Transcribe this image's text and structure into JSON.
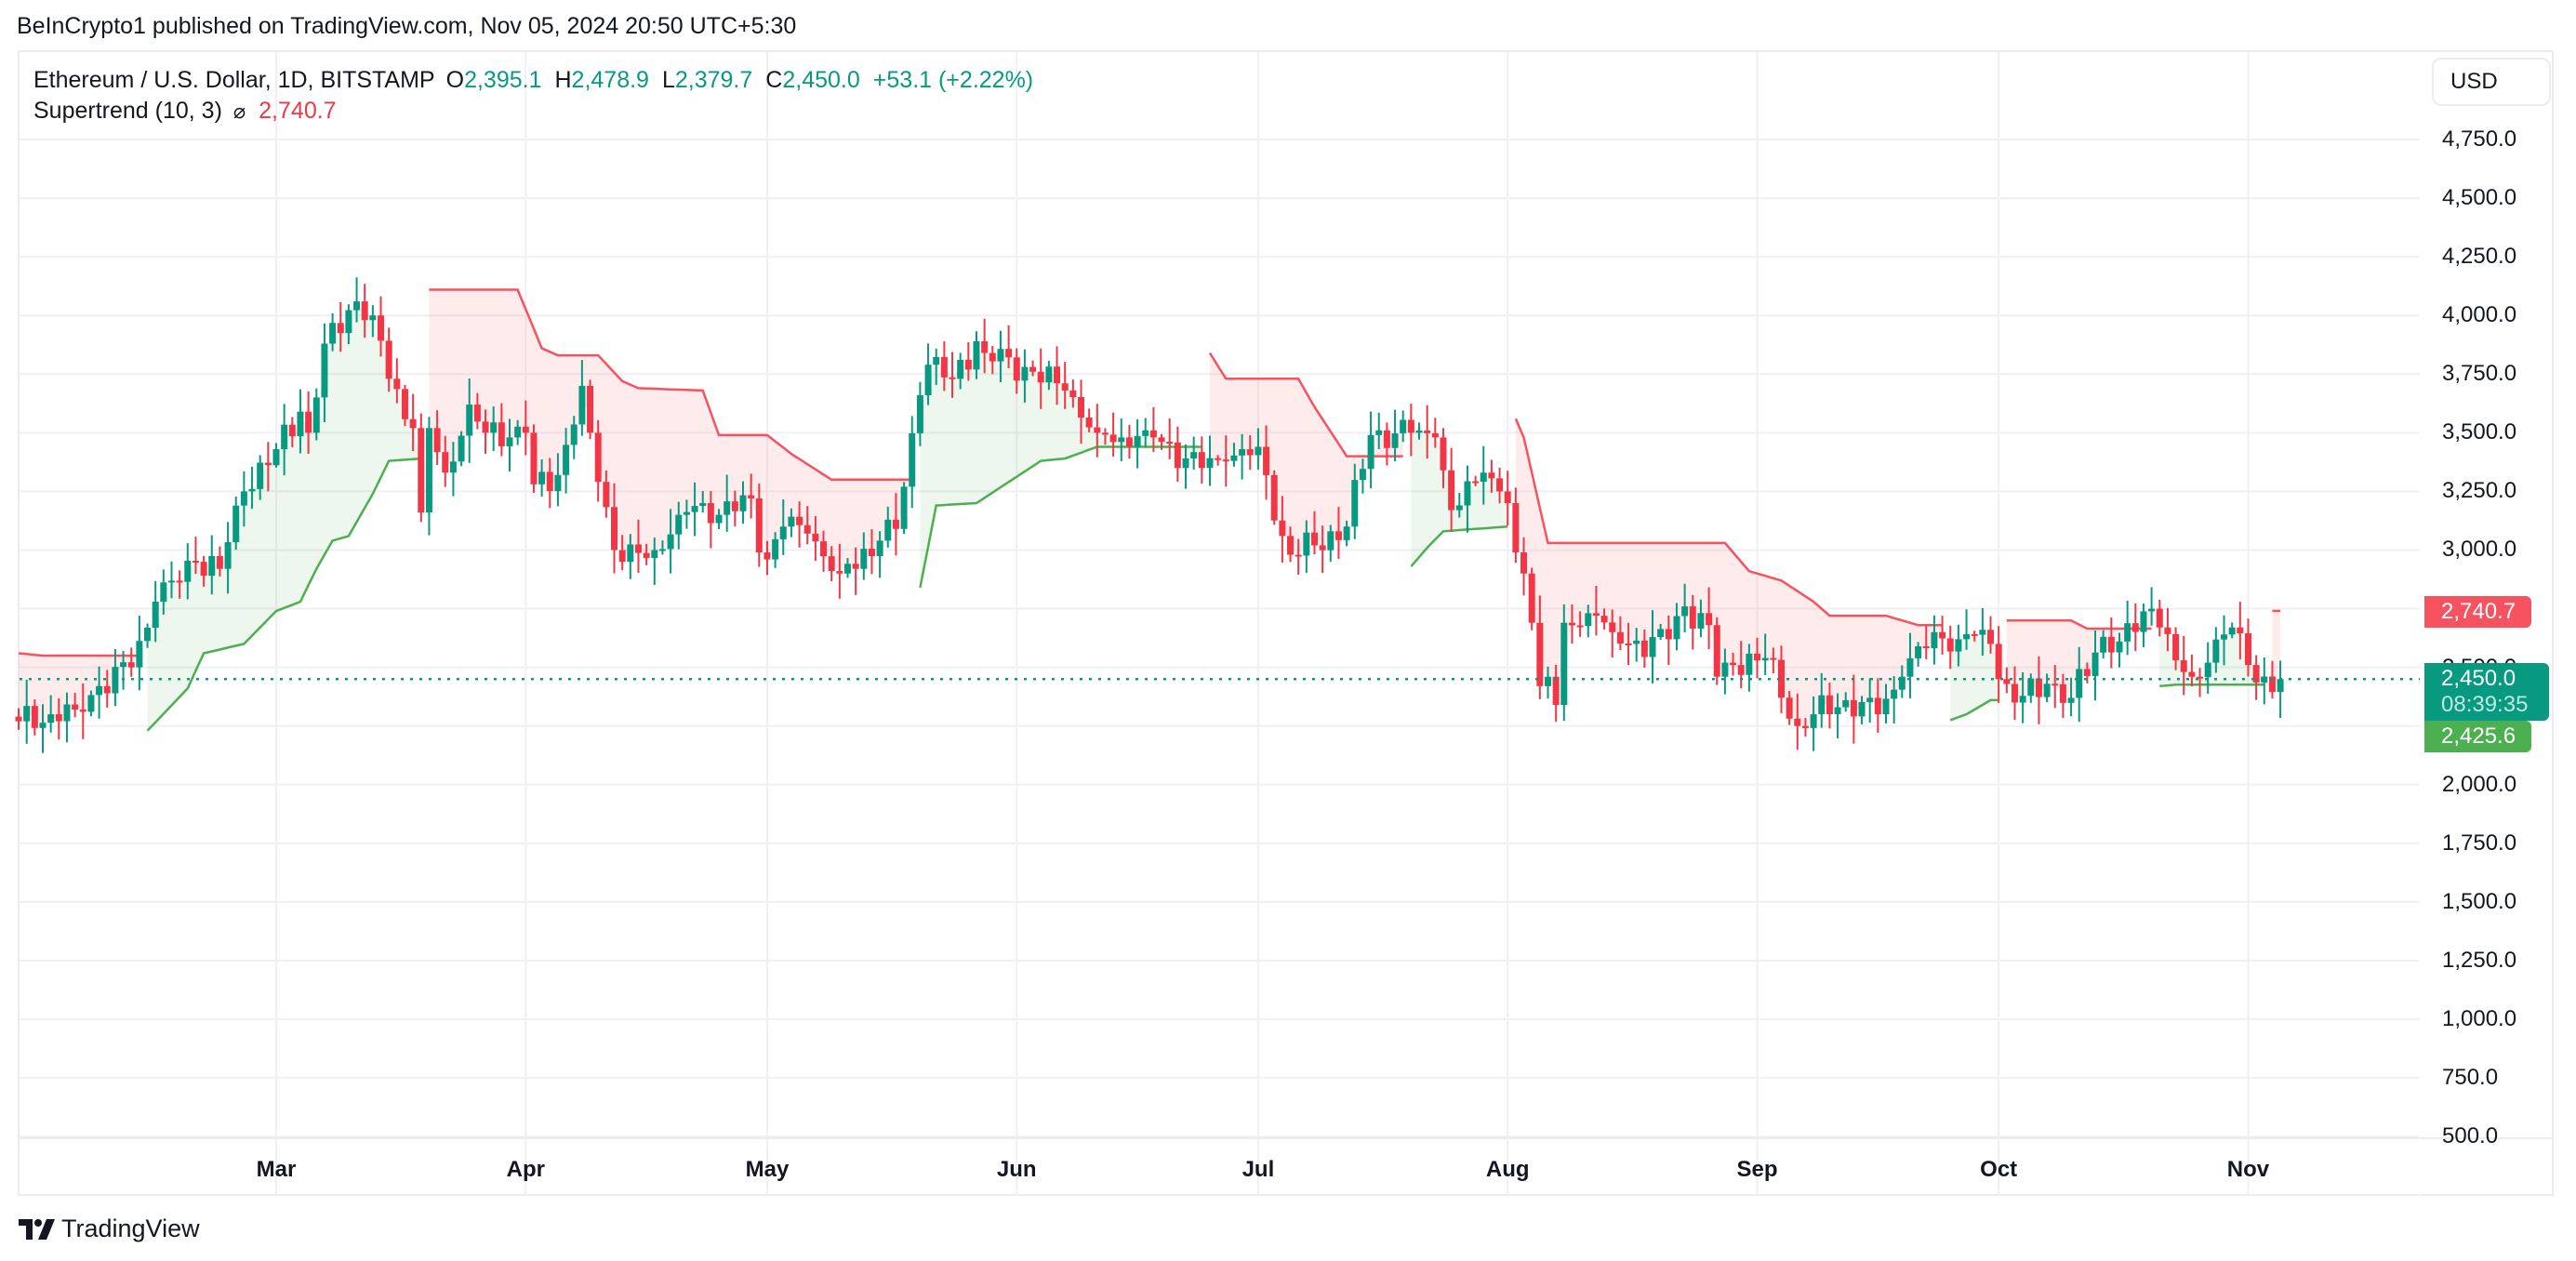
{
  "header": {
    "published": "BeInCrypto1 published on TradingView.com, Nov 05, 2024 20:50 UTC+5:30"
  },
  "legend": {
    "symbol": "Ethereum / U.S. Dollar, 1D, BITSTAMP",
    "o_label": "O",
    "o": "2,395.1",
    "h_label": "H",
    "h": "2,478.9",
    "l_label": "L",
    "l": "2,379.7",
    "c_label": "C",
    "c": "2,450.0",
    "change": "+53.1 (+2.22%)",
    "indicator": "Supertrend (10, 3)",
    "indicator_icon": "⌀",
    "indicator_value": "2,740.7"
  },
  "price_axis": {
    "currency": "USD",
    "ticks": [
      "4,750.0",
      "4,500.0",
      "4,250.0",
      "4,000.0",
      "3,750.0",
      "3,500.0",
      "3,250.0",
      "3,000.0",
      "2,500.0",
      "2,000.0",
      "1,750.0",
      "1,500.0",
      "1,250.0",
      "1,000.0",
      "750.0",
      "500.0"
    ]
  },
  "tags": {
    "supertrend_down": "2,740.7",
    "last_price": "2,450.0",
    "countdown": "08:39:35",
    "supertrend_up": "2,425.6"
  },
  "time_axis": {
    "labels": [
      "Mar",
      "Apr",
      "May",
      "Jun",
      "Jul",
      "Aug",
      "Sep",
      "Oct",
      "Nov"
    ]
  },
  "brand": {
    "name": "TradingView"
  },
  "colors": {
    "up": "#089981",
    "down": "#f23645",
    "st_up": "#4caf50",
    "st_down": "#f7525f",
    "st_up_fill": "rgba(76,175,80,0.10)",
    "st_down_fill": "rgba(247,82,95,0.11)",
    "grid": "#f0f0f3"
  },
  "chart_data": {
    "type": "candlestick",
    "title": "Ethereum / U.S. Dollar, 1D, BITSTAMP",
    "xlabel": "",
    "ylabel": "USD",
    "ylim": [
      500,
      4750
    ],
    "y_ticks": [
      500,
      750,
      1000,
      1250,
      1500,
      1750,
      2000,
      2250,
      2500,
      2750,
      3000,
      3250,
      3500,
      3750,
      4000,
      4250,
      4500,
      4750
    ],
    "x_ticks": [
      "Mar",
      "Apr",
      "May",
      "Jun",
      "Jul",
      "Aug",
      "Sep",
      "Oct",
      "Nov"
    ],
    "start_date": "2024-01-29",
    "end_date": "2024-11-05",
    "last_ohlc": {
      "open": 2395.1,
      "high": 2478.9,
      "low": 2379.7,
      "close": 2450.0,
      "change": 53.1,
      "change_pct": 2.22
    },
    "close_keypoints": [
      [
        "2024-01-29",
        2270
      ],
      [
        "2024-02-02",
        2300
      ],
      [
        "2024-02-05",
        2320
      ],
      [
        "2024-02-08",
        2420
      ],
      [
        "2024-02-12",
        2500
      ],
      [
        "2024-02-15",
        2780
      ],
      [
        "2024-02-20",
        2950
      ],
      [
        "2024-02-23",
        2920
      ],
      [
        "2024-02-26",
        3250
      ],
      [
        "2024-03-01",
        3430
      ],
      [
        "2024-03-04",
        3590
      ],
      [
        "2024-03-05",
        3500
      ],
      [
        "2024-03-07",
        3880
      ],
      [
        "2024-03-11",
        4060
      ],
      [
        "2024-03-12",
        3980
      ],
      [
        "2024-03-13",
        4000
      ],
      [
        "2024-03-15",
        3730
      ],
      [
        "2024-03-18",
        3520
      ],
      [
        "2024-03-19",
        3160
      ],
      [
        "2024-03-20",
        3520
      ],
      [
        "2024-03-22",
        3330
      ],
      [
        "2024-03-25",
        3620
      ],
      [
        "2024-03-27",
        3500
      ],
      [
        "2024-04-01",
        3500
      ],
      [
        "2024-04-02",
        3280
      ],
      [
        "2024-04-05",
        3320
      ],
      [
        "2024-04-08",
        3700
      ],
      [
        "2024-04-09",
        3500
      ],
      [
        "2024-04-12",
        3000
      ],
      [
        "2024-04-13",
        2950
      ],
      [
        "2024-04-17",
        3000
      ],
      [
        "2024-04-20",
        3150
      ],
      [
        "2024-04-23",
        3200
      ],
      [
        "2024-04-25",
        3150
      ],
      [
        "2024-04-29",
        3220
      ],
      [
        "2024-04-30",
        2990
      ],
      [
        "2024-05-01",
        2960
      ],
      [
        "2024-05-03",
        3100
      ],
      [
        "2024-05-06",
        3070
      ],
      [
        "2024-05-10",
        2900
      ],
      [
        "2024-05-15",
        3040
      ],
      [
        "2024-05-17",
        3090
      ],
      [
        "2024-05-20",
        3660
      ],
      [
        "2024-05-21",
        3790
      ],
      [
        "2024-05-24",
        3730
      ],
      [
        "2024-05-27",
        3890
      ],
      [
        "2024-05-28",
        3840
      ],
      [
        "2024-06-03",
        3760
      ],
      [
        "2024-06-07",
        3680
      ],
      [
        "2024-06-11",
        3500
      ],
      [
        "2024-06-14",
        3480
      ],
      [
        "2024-06-17",
        3510
      ],
      [
        "2024-06-18",
        3480
      ],
      [
        "2024-06-24",
        3350
      ],
      [
        "2024-06-27",
        3380
      ],
      [
        "2024-07-01",
        3440
      ],
      [
        "2024-07-04",
        3060
      ],
      [
        "2024-07-05",
        2980
      ],
      [
        "2024-07-08",
        3020
      ],
      [
        "2024-07-12",
        3100
      ],
      [
        "2024-07-15",
        3490
      ],
      [
        "2024-07-20",
        3500
      ],
      [
        "2024-07-23",
        3480
      ],
      [
        "2024-07-24",
        3340
      ],
      [
        "2024-07-25",
        3170
      ],
      [
        "2024-07-29",
        3330
      ],
      [
        "2024-08-01",
        3200
      ],
      [
        "2024-08-02",
        2990
      ],
      [
        "2024-08-03",
        2900
      ],
      [
        "2024-08-04",
        2690
      ],
      [
        "2024-08-05",
        2420
      ],
      [
        "2024-08-06",
        2460
      ],
      [
        "2024-08-07",
        2340
      ],
      [
        "2024-08-08",
        2690
      ],
      [
        "2024-08-12",
        2720
      ],
      [
        "2024-08-14",
        2650
      ],
      [
        "2024-08-16",
        2600
      ],
      [
        "2024-08-21",
        2620
      ],
      [
        "2024-08-23",
        2760
      ],
      [
        "2024-08-26",
        2680
      ],
      [
        "2024-08-27",
        2460
      ],
      [
        "2024-08-28",
        2520
      ],
      [
        "2024-09-02",
        2540
      ],
      [
        "2024-09-06",
        2250
      ],
      [
        "2024-09-08",
        2300
      ],
      [
        "2024-09-12",
        2360
      ],
      [
        "2024-09-16",
        2300
      ],
      [
        "2024-09-19",
        2460
      ],
      [
        "2024-09-23",
        2650
      ],
      [
        "2024-09-26",
        2620
      ],
      [
        "2024-09-29",
        2660
      ],
      [
        "2024-09-30",
        2600
      ],
      [
        "2024-10-01",
        2450
      ],
      [
        "2024-10-03",
        2350
      ],
      [
        "2024-10-07",
        2430
      ],
      [
        "2024-10-10",
        2370
      ],
      [
        "2024-10-14",
        2630
      ],
      [
        "2024-10-16",
        2610
      ],
      [
        "2024-10-20",
        2750
      ],
      [
        "2024-10-21",
        2670
      ],
      [
        "2024-10-23",
        2530
      ],
      [
        "2024-10-25",
        2460
      ],
      [
        "2024-10-27",
        2520
      ],
      [
        "2024-10-29",
        2640
      ],
      [
        "2024-10-30",
        2670
      ],
      [
        "2024-11-01",
        2510
      ],
      [
        "2024-11-04",
        2395
      ],
      [
        "2024-11-05",
        2450
      ]
    ],
    "supertrend": {
      "name": "Supertrend (10, 3)",
      "segments": [
        {
          "dir": "down",
          "points": [
            [
              "2024-01-29",
              2560
            ],
            [
              "2024-02-01",
              2550
            ],
            [
              "2024-02-13",
              2550
            ]
          ]
        },
        {
          "dir": "up",
          "points": [
            [
              "2024-02-14",
              2230
            ],
            [
              "2024-02-19",
              2410
            ],
            [
              "2024-02-21",
              2560
            ],
            [
              "2024-02-26",
              2600
            ],
            [
              "2024-03-01",
              2740
            ],
            [
              "2024-03-04",
              2780
            ],
            [
              "2024-03-06",
              2920
            ],
            [
              "2024-03-08",
              3040
            ],
            [
              "2024-03-10",
              3060
            ],
            [
              "2024-03-13",
              3240
            ],
            [
              "2024-03-15",
              3380
            ],
            [
              "2024-03-19",
              3390
            ]
          ]
        },
        {
          "dir": "down",
          "points": [
            [
              "2024-03-20",
              4110
            ],
            [
              "2024-03-31",
              4110
            ],
            [
              "2024-04-03",
              3860
            ],
            [
              "2024-04-05",
              3830
            ],
            [
              "2024-04-10",
              3830
            ],
            [
              "2024-04-13",
              3720
            ],
            [
              "2024-04-15",
              3690
            ],
            [
              "2024-04-23",
              3680
            ],
            [
              "2024-04-25",
              3490
            ],
            [
              "2024-05-01",
              3490
            ],
            [
              "2024-05-04",
              3410
            ],
            [
              "2024-05-09",
              3300
            ],
            [
              "2024-05-19",
              3300
            ]
          ]
        },
        {
          "dir": "up",
          "points": [
            [
              "2024-05-20",
              2840
            ],
            [
              "2024-05-22",
              3190
            ],
            [
              "2024-05-27",
              3200
            ],
            [
              "2024-06-04",
              3380
            ],
            [
              "2024-06-07",
              3390
            ],
            [
              "2024-06-11",
              3440
            ],
            [
              "2024-06-24",
              3440
            ]
          ]
        },
        {
          "dir": "down",
          "points": [
            [
              "2024-06-25",
              3840
            ],
            [
              "2024-06-27",
              3730
            ],
            [
              "2024-07-06",
              3730
            ],
            [
              "2024-07-08",
              3610
            ],
            [
              "2024-07-12",
              3400
            ],
            [
              "2024-07-19",
              3400
            ]
          ]
        },
        {
          "dir": "up",
          "points": [
            [
              "2024-07-20",
              2930
            ],
            [
              "2024-07-22",
              3010
            ],
            [
              "2024-07-24",
              3080
            ],
            [
              "2024-08-01",
              3100
            ]
          ]
        },
        {
          "dir": "down",
          "points": [
            [
              "2024-08-02",
              3560
            ],
            [
              "2024-08-03",
              3480
            ],
            [
              "2024-08-06",
              3030
            ],
            [
              "2024-08-28",
              3030
            ],
            [
              "2024-08-31",
              2910
            ],
            [
              "2024-09-04",
              2870
            ],
            [
              "2024-09-08",
              2780
            ],
            [
              "2024-09-10",
              2720
            ],
            [
              "2024-09-17",
              2720
            ],
            [
              "2024-09-21",
              2680
            ],
            [
              "2024-09-24",
              2680
            ]
          ]
        },
        {
          "dir": "up",
          "points": [
            [
              "2024-09-25",
              2275
            ],
            [
              "2024-09-27",
              2300
            ],
            [
              "2024-09-30",
              2360
            ],
            [
              "2024-10-01",
              2360
            ]
          ]
        },
        {
          "dir": "down",
          "points": [
            [
              "2024-10-02",
              2700
            ],
            [
              "2024-10-10",
              2700
            ],
            [
              "2024-10-12",
              2665
            ],
            [
              "2024-10-20",
              2665
            ]
          ]
        },
        {
          "dir": "up",
          "points": [
            [
              "2024-10-21",
              2420
            ],
            [
              "2024-10-23",
              2426
            ],
            [
              "2024-11-03",
              2426
            ]
          ]
        },
        {
          "dir": "down",
          "points": [
            [
              "2024-11-04",
              2740.7
            ],
            [
              "2024-11-05",
              2740.7
            ]
          ]
        }
      ]
    }
  }
}
